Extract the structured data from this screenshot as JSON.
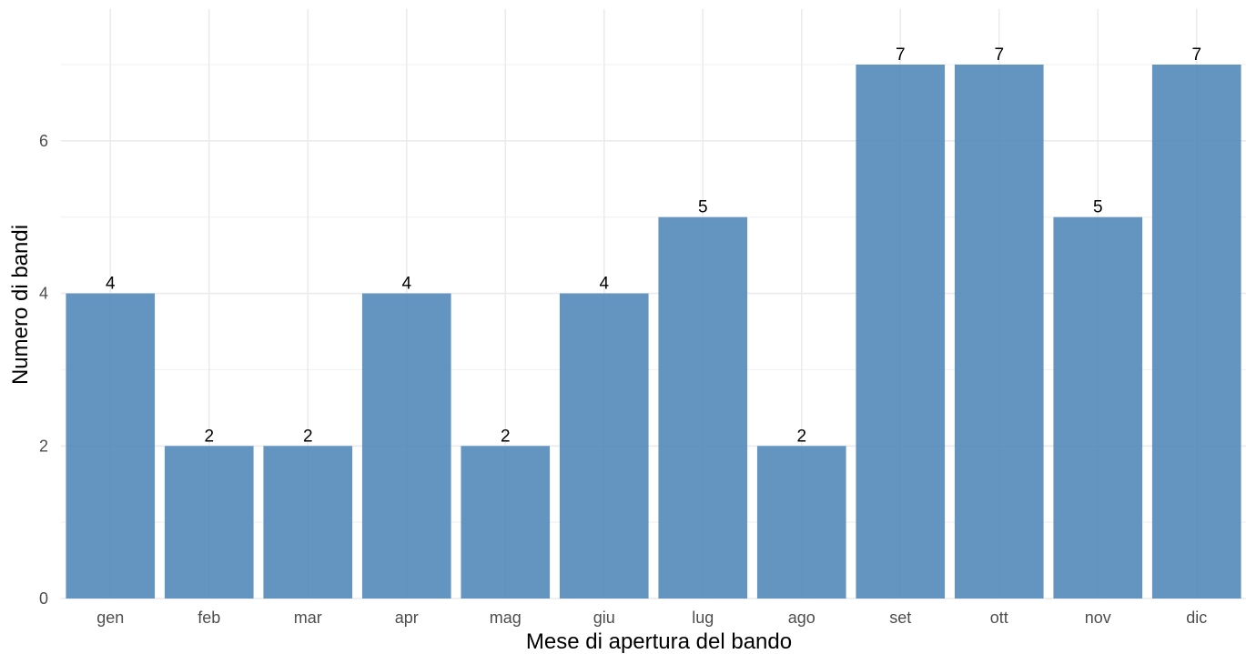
{
  "chart_data": {
    "type": "bar",
    "title": "",
    "xlabel": "Mese di apertura del bando",
    "ylabel": "Numero di bandi",
    "categories": [
      "gen",
      "feb",
      "mar",
      "apr",
      "mag",
      "giu",
      "lug",
      "ago",
      "set",
      "ott",
      "nov",
      "dic"
    ],
    "values": [
      4,
      2,
      2,
      4,
      2,
      4,
      5,
      2,
      7,
      7,
      5,
      7
    ],
    "ylim": [
      0,
      7
    ],
    "yticks": [
      0,
      2,
      4,
      6
    ],
    "grid": true,
    "legend": "none",
    "bar_color": "#4f86b8",
    "data_labels": true
  }
}
